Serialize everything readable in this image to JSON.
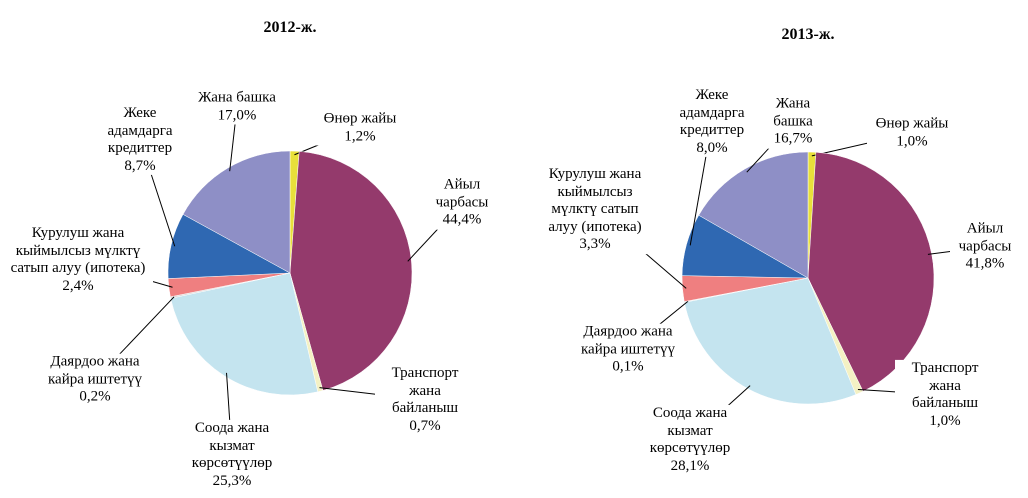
{
  "chart_data": [
    {
      "type": "pie",
      "title": "2012-ж.",
      "categories": [
        "Өнөр жайы",
        "Айыл чарбасы",
        "Транспорт жана байланыш",
        "Соода жана кызмат көрсөтүүлөр",
        "Даярдоо жана кайра иштетүү",
        "Курулуш жана кыймылсыз мүлктү сатып алуу (ипотека)",
        "Жеке адамдарга кредиттер",
        "Жана башка"
      ],
      "values": [
        1.2,
        44.4,
        0.7,
        25.3,
        0.2,
        2.4,
        8.7,
        17.0
      ],
      "value_labels": [
        "1,2%",
        "44,4%",
        "0,7%",
        "25,3%",
        "0,2%",
        "2,4%",
        "8,7%",
        "17,0%"
      ],
      "colors": [
        "#e8e03a",
        "#943a6c",
        "#f4f1c4",
        "#c4e4ef",
        "#d9d9d9",
        "#ef7f80",
        "#2f68b2",
        "#8e8fc6"
      ]
    },
    {
      "type": "pie",
      "title": "2013-ж.",
      "categories": [
        "Өнөр жайы",
        "Айыл чарбасы",
        "Транспорт жана байланыш",
        "Соода жана кызмат көрсөтүүлөр",
        "Даярдоо жана кайра иштетүү",
        "Курулуш жана кыймылсыз мүлктү сатып алуу (ипотека)",
        "Жеке адамдарга кредиттер",
        "Жана башка"
      ],
      "values": [
        1.0,
        41.8,
        1.0,
        28.1,
        0.1,
        3.3,
        8.0,
        16.7
      ],
      "value_labels": [
        "1,0%",
        "41,8%",
        "1,0%",
        "28,1%",
        "0,1%",
        "3,3%",
        "8,0%",
        "16,7%"
      ],
      "colors": [
        "#e8e03a",
        "#943a6c",
        "#f4f1c4",
        "#c4e4ef",
        "#d9d9d9",
        "#ef7f80",
        "#2f68b2",
        "#8e8fc6"
      ]
    }
  ]
}
